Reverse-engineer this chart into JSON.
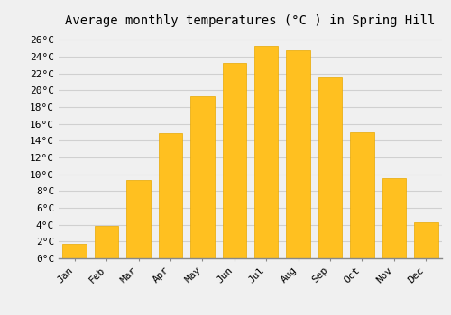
{
  "title": "Average monthly temperatures (°C ) in Spring Hill",
  "months": [
    "Jan",
    "Feb",
    "Mar",
    "Apr",
    "May",
    "Jun",
    "Jul",
    "Aug",
    "Sep",
    "Oct",
    "Nov",
    "Dec"
  ],
  "values": [
    1.7,
    3.9,
    9.3,
    14.9,
    19.3,
    23.3,
    25.3,
    24.8,
    21.5,
    15.0,
    9.5,
    4.3
  ],
  "bar_color": "#FFC020",
  "bar_edge_color": "#E8A800",
  "background_color": "#f0f0f0",
  "grid_color": "#d0d0d0",
  "ylim": [
    0,
    27
  ],
  "ytick_step": 2,
  "title_fontsize": 10,
  "tick_fontsize": 8,
  "font_family": "monospace"
}
